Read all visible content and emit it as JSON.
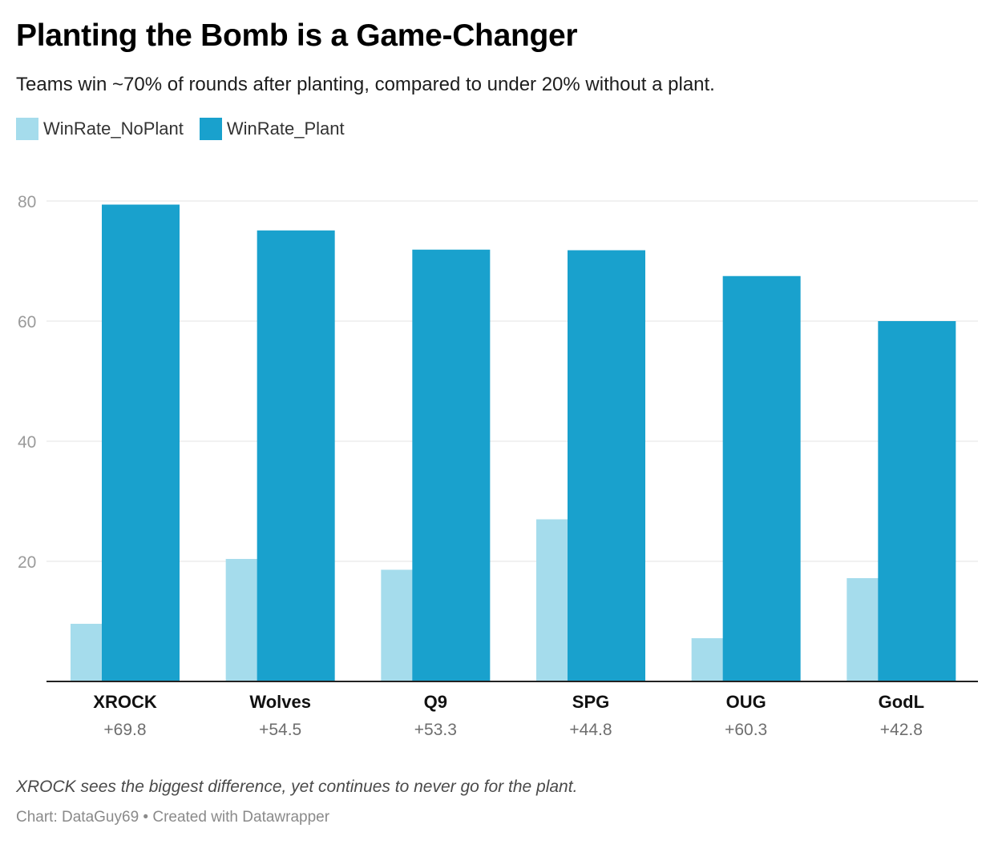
{
  "header": {
    "title": "Planting the Bomb is a Game-Changer",
    "subtitle": "Teams win ~70% of rounds after planting, compared to under 20% without a plant."
  },
  "legend": [
    {
      "label": "WinRate_NoPlant",
      "color": "#a5dcec"
    },
    {
      "label": "WinRate_Plant",
      "color": "#19a1cd"
    }
  ],
  "footer": {
    "note": "XROCK sees the biggest difference, yet continues to never go for the plant.",
    "credit": "Chart: DataGuy69 • Created with Datawrapper"
  },
  "chart_data": {
    "type": "bar",
    "title": "Planting the Bomb is a Game-Changer",
    "categories": [
      "XROCK",
      "Wolves",
      "Q9",
      "SPG",
      "OUG",
      "GodL"
    ],
    "category_sublabels": [
      "+69.8",
      "+54.5",
      "+53.3",
      "+44.8",
      "+60.3",
      "+42.8"
    ],
    "series": [
      {
        "name": "WinRate_NoPlant",
        "color": "#a5dcec",
        "values": [
          9.6,
          20.4,
          18.6,
          27.0,
          7.2,
          17.2
        ]
      },
      {
        "name": "WinRate_Plant",
        "color": "#19a1cd",
        "values": [
          79.4,
          75.1,
          71.9,
          71.8,
          67.5,
          60.0
        ]
      }
    ],
    "xlabel": "",
    "ylabel": "",
    "ylim": [
      0,
      80
    ],
    "yticks": [
      20,
      40,
      60,
      80
    ],
    "grid": true
  }
}
